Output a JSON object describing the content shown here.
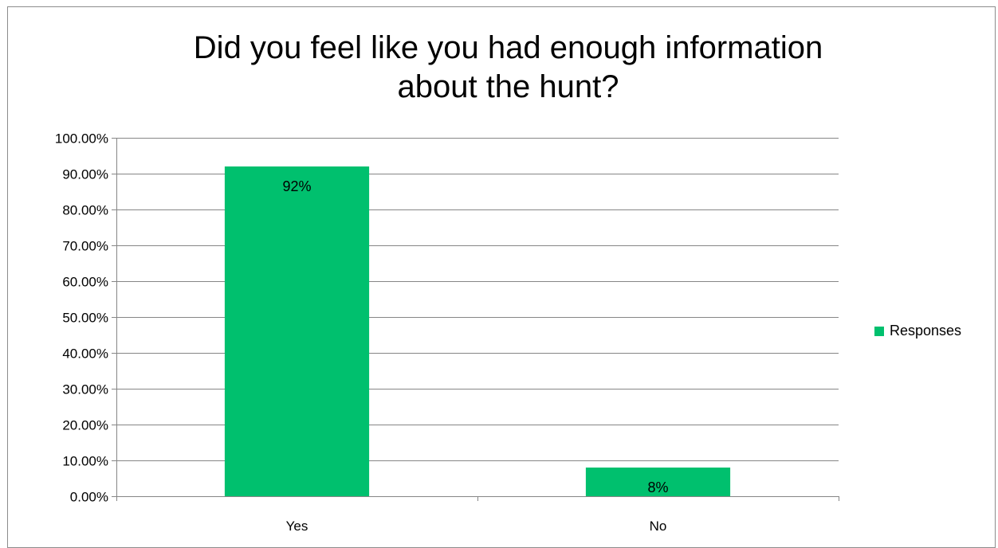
{
  "chart_data": {
    "type": "bar",
    "title": "Did you feel like you had enough information about the hunt?",
    "title_lines": [
      "Did you feel like you had enough information",
      "about the hunt?"
    ],
    "categories": [
      "Yes",
      "No"
    ],
    "series": [
      {
        "name": "Responses",
        "values": [
          0.92,
          0.08
        ],
        "data_labels": [
          "92%",
          "8%"
        ],
        "color": "#00c06e"
      }
    ],
    "y_ticks": [
      "0.00%",
      "10.00%",
      "20.00%",
      "30.00%",
      "40.00%",
      "50.00%",
      "60.00%",
      "70.00%",
      "80.00%",
      "90.00%",
      "100.00%"
    ],
    "ylim": [
      0,
      1
    ],
    "xlabel": "",
    "ylabel": "",
    "grid": true,
    "legend_position": "right",
    "gridline_color": "#868686"
  }
}
